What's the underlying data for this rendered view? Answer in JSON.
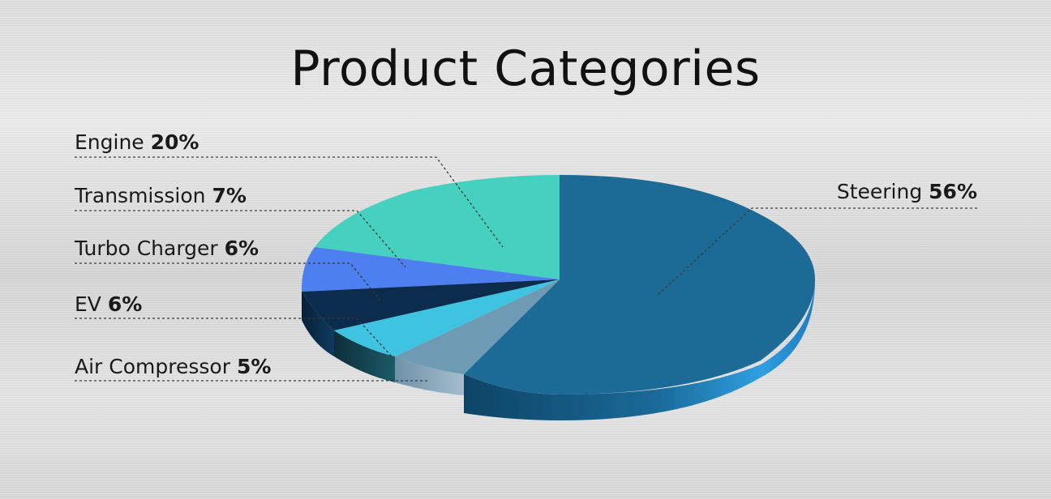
{
  "title": "Product Categories",
  "chart_data": {
    "type": "pie",
    "title": "Product Categories",
    "slices": [
      {
        "label": "Steering",
        "value": 56,
        "value_label": "56%",
        "color": "#1c6b97"
      },
      {
        "label": "Engine",
        "value": 20,
        "value_label": "20%",
        "color": "#46d0bf"
      },
      {
        "label": "Transmission",
        "value": 7,
        "value_label": "7%",
        "color": "#4d7ff0"
      },
      {
        "label": "Turbo Charger",
        "value": 6,
        "value_label": "6%",
        "color": "#0b2c4d"
      },
      {
        "label": "EV",
        "value": 6,
        "value_label": "6%",
        "color": "#3ec4e0"
      },
      {
        "label": "Air Compressor",
        "value": 5,
        "value_label": "5%",
        "color": "#6e9bb3"
      }
    ],
    "legend": "none",
    "style": "3d-tilted"
  }
}
